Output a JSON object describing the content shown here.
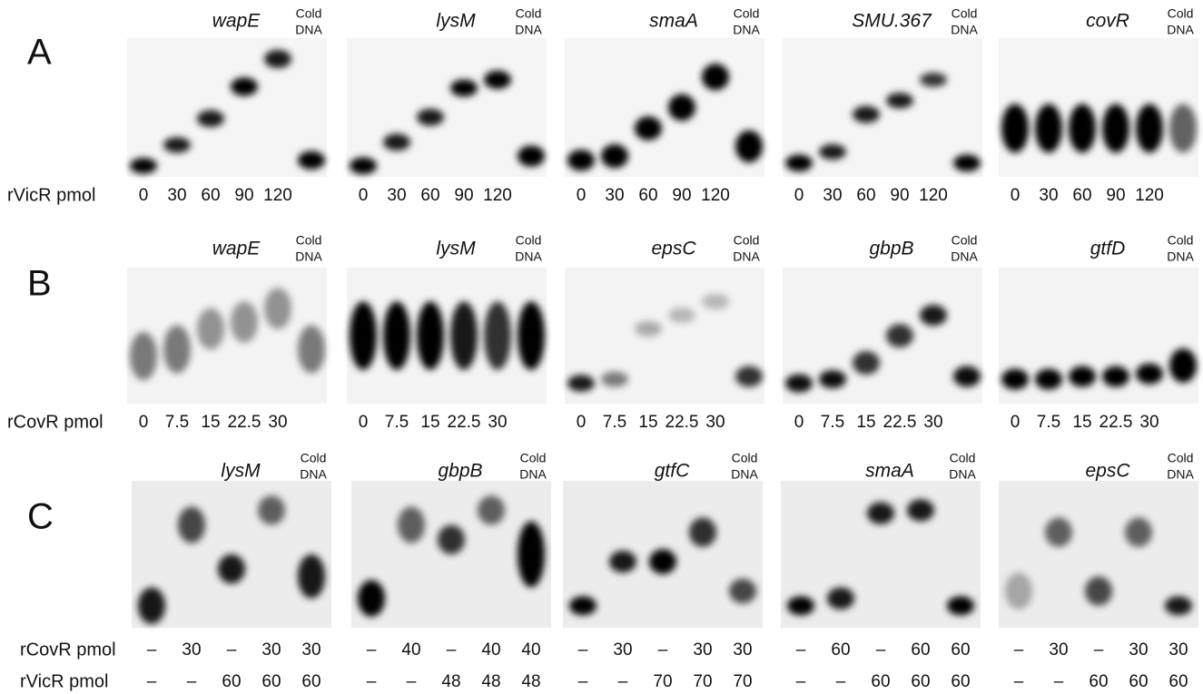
{
  "panels": [
    {
      "label": "A",
      "row_labels": [
        "rVicR pmol"
      ],
      "gels": [
        {
          "gene": "wapE",
          "cold": [
            "Cold",
            "DNA"
          ],
          "rows": [
            [
              "0",
              "30",
              "60",
              "90",
              "120"
            ]
          ]
        },
        {
          "gene": "lysM",
          "cold": [
            "Cold",
            "DNA"
          ],
          "rows": [
            [
              "0",
              "30",
              "60",
              "90",
              "120"
            ]
          ]
        },
        {
          "gene": "smaA",
          "cold": [
            "Cold",
            "DNA"
          ],
          "rows": [
            [
              "0",
              "30",
              "60",
              "90",
              "120"
            ]
          ]
        },
        {
          "gene": "SMU.367",
          "cold": [
            "Cold",
            "DNA"
          ],
          "rows": [
            [
              "0",
              "30",
              "60",
              "90",
              "120"
            ]
          ]
        },
        {
          "gene": "covR",
          "cold": [
            "Cold",
            "DNA"
          ],
          "rows": [
            [
              "0",
              "30",
              "60",
              "90",
              "120"
            ]
          ]
        }
      ]
    },
    {
      "label": "B",
      "row_labels": [
        "rCovR pmol"
      ],
      "gels": [
        {
          "gene": "wapE",
          "cold": [
            "Cold",
            "DNA"
          ],
          "rows": [
            [
              "0",
              "7.5",
              "15",
              "22.5",
              "30"
            ]
          ]
        },
        {
          "gene": "lysM",
          "cold": [
            "Cold",
            "DNA"
          ],
          "rows": [
            [
              "0",
              "7.5",
              "15",
              "22.5",
              "30"
            ]
          ]
        },
        {
          "gene": "epsC",
          "cold": [
            "Cold",
            "DNA"
          ],
          "rows": [
            [
              "0",
              "7.5",
              "15",
              "22.5",
              "30"
            ]
          ]
        },
        {
          "gene": "gbpB",
          "cold": [
            "Cold",
            "DNA"
          ],
          "rows": [
            [
              "0",
              "7.5",
              "15",
              "22.5",
              "30"
            ]
          ]
        },
        {
          "gene": "gtfD",
          "cold": [
            "Cold",
            "DNA"
          ],
          "rows": [
            [
              "0",
              "7.5",
              "15",
              "22.5",
              "30"
            ]
          ]
        }
      ]
    },
    {
      "label": "C",
      "row_labels": [
        "rCovR pmol",
        "rVicR pmol"
      ],
      "gels": [
        {
          "gene": "lysM",
          "cold": [
            "Cold",
            "DNA"
          ],
          "rows": [
            [
              "–",
              "30",
              "–",
              "30",
              "30"
            ],
            [
              "–",
              "–",
              "60",
              "60",
              "60"
            ]
          ]
        },
        {
          "gene": "gbpB",
          "cold": [
            "Cold",
            "DNA"
          ],
          "rows": [
            [
              "–",
              "40",
              "–",
              "40",
              "40"
            ],
            [
              "–",
              "–",
              "48",
              "48",
              "48"
            ]
          ]
        },
        {
          "gene": "gtfC",
          "cold": [
            "Cold",
            "DNA"
          ],
          "rows": [
            [
              "–",
              "30",
              "–",
              "30",
              "30"
            ],
            [
              "–",
              "–",
              "70",
              "70",
              "70"
            ]
          ]
        },
        {
          "gene": "smaA",
          "cold": [
            "Cold",
            "DNA"
          ],
          "rows": [
            [
              "–",
              "60",
              "–",
              "60",
              "60"
            ],
            [
              "–",
              "–",
              "60",
              "60",
              "60"
            ]
          ]
        },
        {
          "gene": "epsC",
          "cold": [
            "Cold",
            "DNA"
          ],
          "rows": [
            [
              "–",
              "30",
              "–",
              "30",
              "30"
            ],
            [
              "–",
              "–",
              "60",
              "60",
              "60"
            ]
          ]
        }
      ]
    }
  ]
}
